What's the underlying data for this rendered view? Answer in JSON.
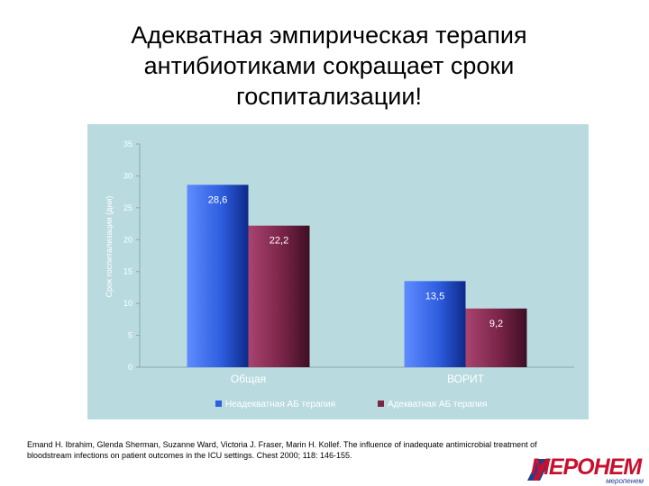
{
  "slide": {
    "title_lines": [
      "Адекватная эмпирическая терапия",
      "антибиотиками сокращает сроки",
      "госпитализации!"
    ],
    "citation_lines": [
      "Emand H. Ibrahim, Glenda Sherman, Suzanne Ward, Victoria J. Fraser, Marin H. Kollef. The influence of inadequate antimicrobial treatment of",
      "bloodstream infections on patient outcomes in the ICU settings. Chest 2000; 118: 146-155."
    ],
    "logo": {
      "main": "МЕРОНЕМ",
      "sub": "меропенем"
    }
  },
  "colors": {
    "panel_bg": "#b9dbe0",
    "series1": "#2f5ee0",
    "series2": "#7a2448",
    "logo_red": "#c8102e",
    "logo_blue": "#1f3f8f"
  },
  "chart_data": {
    "type": "bar",
    "ylabel": "Срок госпитализации (дни)",
    "ylim": [
      0,
      35
    ],
    "yticks": [
      "35",
      "30",
      "25",
      "20",
      "15",
      "10",
      "5",
      "0"
    ],
    "categories": [
      "Общая",
      "ВОРИТ"
    ],
    "series": [
      {
        "name": "Неадекватная АБ терапия",
        "values": [
          28.6,
          13.5
        ],
        "labels": [
          "28,6",
          "13,5"
        ]
      },
      {
        "name": "Адекватная АБ терапия",
        "values": [
          22.2,
          9.2
        ],
        "labels": [
          "22,2",
          "9,2"
        ]
      }
    ],
    "legend_position": "bottom",
    "grid": false
  }
}
